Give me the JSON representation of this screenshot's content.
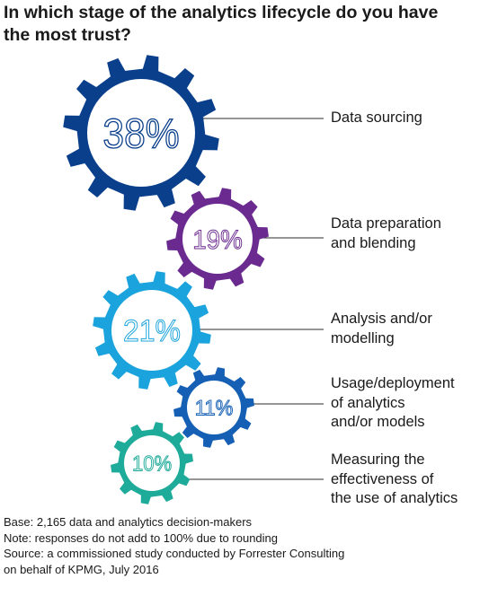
{
  "title": {
    "line1": "In which stage of the analytics lifecycle do you have",
    "line2": "the most trust?"
  },
  "chart_data": {
    "type": "gear-infographic",
    "unit": "%",
    "series": [
      {
        "label": "Data sourcing",
        "value": 38,
        "display": "38%",
        "color": "#0a3f8c",
        "label_lines": [
          "Data sourcing"
        ]
      },
      {
        "label": "Data preparation and blending",
        "value": 19,
        "display": "19%",
        "color": "#6a2a8f",
        "label_lines": [
          "Data preparation",
          "and blending"
        ]
      },
      {
        "label": "Analysis and/or modelling",
        "value": 21,
        "display": "21%",
        "color": "#1aa3dc",
        "label_lines": [
          "Analysis and/or",
          "modelling"
        ]
      },
      {
        "label": "Usage/deployment of analytics and/or models",
        "value": 11,
        "display": "11%",
        "color": "#1560b5",
        "label_lines": [
          "Usage/deployment",
          "of analytics",
          "and/or models"
        ]
      },
      {
        "label": "Measuring the effectiveness of the use of analytics",
        "value": 10,
        "display": "10%",
        "color": "#1eab9a",
        "label_lines": [
          "Measuring the",
          "effectiveness of",
          "the use of analytics"
        ]
      }
    ]
  },
  "footnotes": {
    "base": "Base: 2,165 data and analytics decision-makers",
    "note": "Note: responses do not add to 100% due to rounding",
    "source_line1": "Source: a commissioned study conducted by Forrester Consulting",
    "source_line2": "on behalf of KPMG, July 2016"
  }
}
